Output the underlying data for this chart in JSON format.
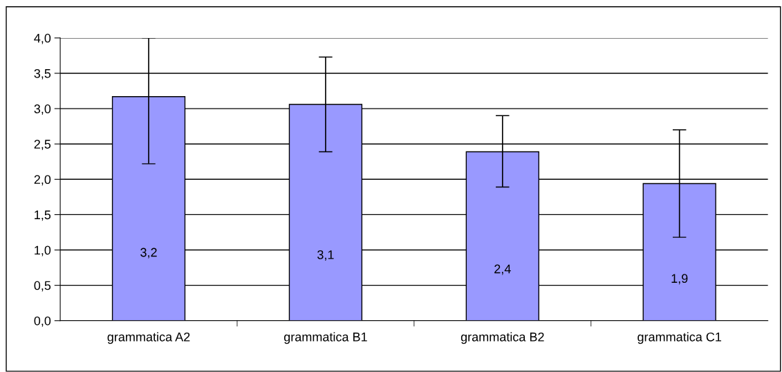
{
  "chart_data": {
    "type": "bar",
    "categories": [
      "grammatica A2",
      "grammatica B1",
      "grammatica B2",
      "grammatica C1"
    ],
    "values": [
      3.17,
      3.06,
      2.39,
      1.94
    ],
    "errors": [
      [
        2.22,
        4.0
      ],
      [
        2.39,
        3.73
      ],
      [
        1.89,
        2.9
      ],
      [
        1.18,
        2.7
      ]
    ],
    "value_labels": [
      "3,2",
      "3,1",
      "2,4",
      "1,9"
    ],
    "color": "#9999ff",
    "ylim": [
      0,
      4
    ],
    "yticks": [
      {
        "value": 0,
        "label": "0,0"
      },
      {
        "value": 0.5,
        "label": "0,5"
      },
      {
        "value": 1,
        "label": "1,0"
      },
      {
        "value": 1.5,
        "label": "1,5"
      },
      {
        "value": 2,
        "label": "2,0"
      },
      {
        "value": 2.5,
        "label": "2,5"
      },
      {
        "value": 3,
        "label": "3,0"
      },
      {
        "value": 3.5,
        "label": "3,5"
      },
      {
        "value": 4,
        "label": "4,0"
      }
    ],
    "grid": "y"
  }
}
